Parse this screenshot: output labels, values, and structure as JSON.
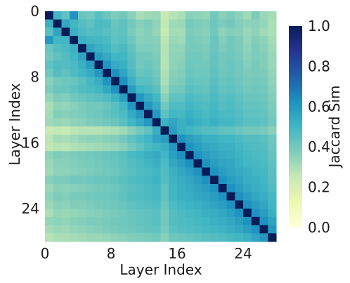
{
  "chart_data": {
    "type": "heatmap",
    "title": "",
    "xlabel": "Layer Index",
    "ylabel": "Layer Index",
    "x_tick_labels": [
      "0",
      "8",
      "16",
      "24"
    ],
    "x_tick_values": [
      0,
      8,
      16,
      24
    ],
    "y_tick_labels": [
      "0",
      "8",
      "16",
      "24"
    ],
    "y_tick_values": [
      0,
      8,
      16,
      24
    ],
    "size": 28,
    "colorbar": {
      "label": "Jaccard Sim",
      "range": [
        0,
        1
      ],
      "tick_labels": [
        "0.0",
        "0.2",
        "0.4",
        "0.6",
        "0.8",
        "1.0"
      ],
      "tick_values": [
        0,
        0.2,
        0.4,
        0.6,
        0.8,
        1.0
      ],
      "colormap": "YlGnBu",
      "colormap_stops": [
        "#ffffd9",
        "#edf8b1",
        "#c7e9b4",
        "#7fcdbb",
        "#41b6c4",
        "#1d91c0",
        "#225ea8",
        "#253494",
        "#081d58"
      ]
    },
    "diagonal_value": 1.0,
    "values": [
      [
        1.0,
        0.5,
        0.44,
        0.62,
        0.42,
        0.4,
        0.45,
        0.42,
        0.38,
        0.4,
        0.36,
        0.3,
        0.32,
        0.33,
        0.25,
        0.28,
        0.3,
        0.36,
        0.35,
        0.34,
        0.4,
        0.36,
        0.38,
        0.35,
        0.32,
        0.38,
        0.33,
        0.31
      ],
      [
        0.52,
        1.0,
        0.55,
        0.5,
        0.46,
        0.44,
        0.48,
        0.47,
        0.42,
        0.44,
        0.4,
        0.36,
        0.38,
        0.35,
        0.26,
        0.32,
        0.33,
        0.4,
        0.38,
        0.37,
        0.41,
        0.38,
        0.4,
        0.37,
        0.35,
        0.36,
        0.34,
        0.3
      ],
      [
        0.45,
        0.56,
        1.0,
        0.52,
        0.48,
        0.46,
        0.47,
        0.45,
        0.43,
        0.44,
        0.38,
        0.35,
        0.37,
        0.34,
        0.25,
        0.31,
        0.31,
        0.38,
        0.37,
        0.36,
        0.4,
        0.35,
        0.37,
        0.36,
        0.33,
        0.35,
        0.32,
        0.3
      ],
      [
        0.6,
        0.5,
        0.5,
        1.0,
        0.52,
        0.5,
        0.49,
        0.48,
        0.44,
        0.45,
        0.41,
        0.36,
        0.37,
        0.36,
        0.27,
        0.33,
        0.32,
        0.39,
        0.38,
        0.37,
        0.42,
        0.37,
        0.4,
        0.38,
        0.34,
        0.37,
        0.35,
        0.31
      ],
      [
        0.42,
        0.46,
        0.48,
        0.52,
        1.0,
        0.56,
        0.52,
        0.5,
        0.46,
        0.48,
        0.43,
        0.38,
        0.38,
        0.37,
        0.28,
        0.34,
        0.34,
        0.39,
        0.39,
        0.38,
        0.42,
        0.38,
        0.4,
        0.38,
        0.35,
        0.38,
        0.36,
        0.32
      ],
      [
        0.4,
        0.44,
        0.46,
        0.5,
        0.56,
        1.0,
        0.58,
        0.54,
        0.5,
        0.5,
        0.45,
        0.4,
        0.4,
        0.38,
        0.28,
        0.35,
        0.35,
        0.4,
        0.4,
        0.39,
        0.43,
        0.4,
        0.41,
        0.39,
        0.36,
        0.38,
        0.37,
        0.33
      ],
      [
        0.44,
        0.47,
        0.46,
        0.48,
        0.52,
        0.58,
        1.0,
        0.6,
        0.54,
        0.52,
        0.46,
        0.4,
        0.42,
        0.39,
        0.28,
        0.35,
        0.36,
        0.41,
        0.4,
        0.4,
        0.43,
        0.4,
        0.42,
        0.4,
        0.37,
        0.39,
        0.37,
        0.33
      ],
      [
        0.41,
        0.46,
        0.44,
        0.47,
        0.5,
        0.54,
        0.6,
        1.0,
        0.62,
        0.56,
        0.48,
        0.42,
        0.43,
        0.4,
        0.29,
        0.36,
        0.37,
        0.42,
        0.41,
        0.41,
        0.44,
        0.41,
        0.42,
        0.4,
        0.38,
        0.39,
        0.38,
        0.34
      ],
      [
        0.36,
        0.4,
        0.41,
        0.42,
        0.45,
        0.49,
        0.53,
        0.61,
        1.0,
        0.62,
        0.52,
        0.45,
        0.45,
        0.42,
        0.3,
        0.37,
        0.38,
        0.43,
        0.42,
        0.42,
        0.45,
        0.42,
        0.43,
        0.41,
        0.39,
        0.4,
        0.39,
        0.35
      ],
      [
        0.38,
        0.42,
        0.42,
        0.44,
        0.46,
        0.48,
        0.5,
        0.55,
        0.62,
        1.0,
        0.58,
        0.5,
        0.48,
        0.45,
        0.32,
        0.4,
        0.4,
        0.45,
        0.44,
        0.43,
        0.46,
        0.43,
        0.44,
        0.42,
        0.4,
        0.41,
        0.4,
        0.36
      ],
      [
        0.34,
        0.38,
        0.37,
        0.4,
        0.42,
        0.44,
        0.45,
        0.47,
        0.51,
        0.58,
        1.0,
        0.6,
        0.54,
        0.5,
        0.36,
        0.44,
        0.44,
        0.48,
        0.46,
        0.45,
        0.48,
        0.45,
        0.46,
        0.44,
        0.42,
        0.42,
        0.41,
        0.37
      ],
      [
        0.3,
        0.35,
        0.34,
        0.36,
        0.38,
        0.4,
        0.4,
        0.42,
        0.45,
        0.5,
        0.6,
        1.0,
        0.6,
        0.54,
        0.4,
        0.47,
        0.47,
        0.5,
        0.48,
        0.47,
        0.49,
        0.46,
        0.47,
        0.45,
        0.43,
        0.43,
        0.42,
        0.38
      ],
      [
        0.31,
        0.37,
        0.36,
        0.37,
        0.38,
        0.4,
        0.41,
        0.43,
        0.45,
        0.48,
        0.54,
        0.6,
        1.0,
        0.6,
        0.44,
        0.5,
        0.49,
        0.52,
        0.5,
        0.48,
        0.5,
        0.48,
        0.48,
        0.46,
        0.44,
        0.44,
        0.43,
        0.39
      ],
      [
        0.32,
        0.34,
        0.33,
        0.35,
        0.36,
        0.38,
        0.39,
        0.4,
        0.42,
        0.45,
        0.5,
        0.54,
        0.6,
        1.0,
        0.52,
        0.56,
        0.52,
        0.54,
        0.52,
        0.5,
        0.52,
        0.49,
        0.49,
        0.47,
        0.45,
        0.45,
        0.44,
        0.4
      ],
      [
        0.24,
        0.26,
        0.25,
        0.27,
        0.28,
        0.28,
        0.28,
        0.29,
        0.3,
        0.32,
        0.36,
        0.4,
        0.44,
        0.52,
        1.0,
        0.58,
        0.52,
        0.5,
        0.48,
        0.46,
        0.46,
        0.44,
        0.44,
        0.42,
        0.4,
        0.4,
        0.39,
        0.36
      ],
      [
        0.27,
        0.31,
        0.3,
        0.32,
        0.34,
        0.35,
        0.35,
        0.36,
        0.37,
        0.4,
        0.44,
        0.47,
        0.5,
        0.56,
        0.58,
        1.0,
        0.62,
        0.58,
        0.55,
        0.52,
        0.52,
        0.5,
        0.5,
        0.48,
        0.46,
        0.46,
        0.45,
        0.41
      ],
      [
        0.26,
        0.28,
        0.27,
        0.29,
        0.3,
        0.31,
        0.32,
        0.33,
        0.34,
        0.36,
        0.4,
        0.44,
        0.48,
        0.5,
        0.52,
        0.6,
        1.0,
        0.62,
        0.58,
        0.55,
        0.54,
        0.52,
        0.52,
        0.5,
        0.48,
        0.47,
        0.46,
        0.42
      ],
      [
        0.35,
        0.38,
        0.37,
        0.38,
        0.39,
        0.4,
        0.41,
        0.42,
        0.43,
        0.45,
        0.48,
        0.5,
        0.52,
        0.54,
        0.5,
        0.58,
        0.62,
        1.0,
        0.62,
        0.58,
        0.56,
        0.54,
        0.53,
        0.51,
        0.49,
        0.48,
        0.47,
        0.43
      ],
      [
        0.33,
        0.36,
        0.36,
        0.37,
        0.38,
        0.39,
        0.4,
        0.41,
        0.42,
        0.44,
        0.46,
        0.48,
        0.5,
        0.52,
        0.48,
        0.55,
        0.58,
        0.62,
        1.0,
        0.62,
        0.58,
        0.56,
        0.55,
        0.52,
        0.5,
        0.49,
        0.48,
        0.44
      ],
      [
        0.32,
        0.35,
        0.35,
        0.36,
        0.37,
        0.38,
        0.39,
        0.4,
        0.41,
        0.43,
        0.45,
        0.47,
        0.48,
        0.5,
        0.46,
        0.52,
        0.55,
        0.58,
        0.62,
        1.0,
        0.62,
        0.58,
        0.56,
        0.54,
        0.52,
        0.5,
        0.49,
        0.45
      ],
      [
        0.36,
        0.38,
        0.38,
        0.4,
        0.4,
        0.41,
        0.42,
        0.42,
        0.43,
        0.45,
        0.47,
        0.48,
        0.49,
        0.51,
        0.46,
        0.51,
        0.53,
        0.55,
        0.58,
        0.62,
        1.0,
        0.62,
        0.58,
        0.56,
        0.53,
        0.52,
        0.5,
        0.46
      ],
      [
        0.33,
        0.36,
        0.35,
        0.36,
        0.37,
        0.38,
        0.39,
        0.4,
        0.41,
        0.43,
        0.45,
        0.46,
        0.48,
        0.49,
        0.44,
        0.5,
        0.52,
        0.54,
        0.56,
        0.58,
        0.62,
        1.0,
        0.62,
        0.58,
        0.55,
        0.53,
        0.51,
        0.47
      ],
      [
        0.35,
        0.38,
        0.37,
        0.39,
        0.39,
        0.4,
        0.41,
        0.41,
        0.42,
        0.44,
        0.46,
        0.47,
        0.48,
        0.49,
        0.44,
        0.5,
        0.52,
        0.53,
        0.55,
        0.56,
        0.58,
        0.62,
        1.0,
        0.62,
        0.58,
        0.55,
        0.53,
        0.49
      ],
      [
        0.33,
        0.36,
        0.35,
        0.37,
        0.37,
        0.38,
        0.39,
        0.4,
        0.41,
        0.42,
        0.44,
        0.45,
        0.46,
        0.47,
        0.42,
        0.48,
        0.5,
        0.51,
        0.52,
        0.54,
        0.56,
        0.58,
        0.62,
        1.0,
        0.62,
        0.58,
        0.55,
        0.5
      ],
      [
        0.3,
        0.34,
        0.33,
        0.34,
        0.35,
        0.36,
        0.37,
        0.38,
        0.39,
        0.4,
        0.42,
        0.43,
        0.44,
        0.45,
        0.4,
        0.46,
        0.48,
        0.49,
        0.5,
        0.52,
        0.53,
        0.55,
        0.58,
        0.62,
        1.0,
        0.62,
        0.58,
        0.52
      ],
      [
        0.34,
        0.35,
        0.34,
        0.36,
        0.37,
        0.38,
        0.38,
        0.39,
        0.4,
        0.41,
        0.42,
        0.43,
        0.44,
        0.45,
        0.4,
        0.46,
        0.47,
        0.48,
        0.49,
        0.5,
        0.52,
        0.53,
        0.55,
        0.58,
        0.62,
        1.0,
        0.62,
        0.56
      ],
      [
        0.31,
        0.33,
        0.32,
        0.34,
        0.35,
        0.36,
        0.37,
        0.38,
        0.39,
        0.4,
        0.41,
        0.42,
        0.43,
        0.44,
        0.39,
        0.45,
        0.46,
        0.47,
        0.48,
        0.49,
        0.5,
        0.51,
        0.53,
        0.55,
        0.58,
        0.62,
        1.0,
        0.6
      ],
      [
        0.28,
        0.3,
        0.3,
        0.31,
        0.32,
        0.33,
        0.33,
        0.34,
        0.35,
        0.36,
        0.37,
        0.38,
        0.39,
        0.4,
        0.36,
        0.41,
        0.42,
        0.43,
        0.44,
        0.45,
        0.46,
        0.47,
        0.49,
        0.5,
        0.52,
        0.56,
        0.6,
        1.0
      ]
    ]
  }
}
